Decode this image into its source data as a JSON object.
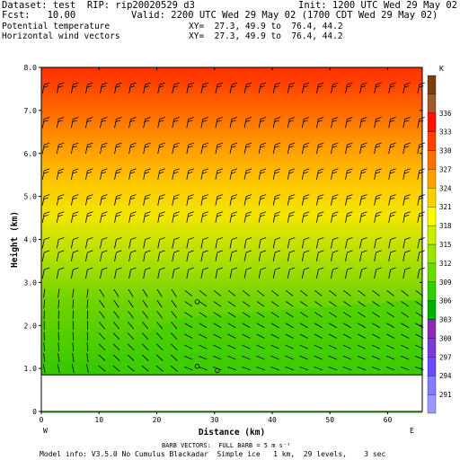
{
  "header": {
    "dataset": "Dataset: test  RIP: rip20020529 d3",
    "init": "Init: 1200 UTC Wed 29 May 02",
    "fcst": "Fcst:   10.00",
    "valid": "Valid: 2200 UTC Wed 29 May 02 (1700 CDT Wed 29 May 02)",
    "field1": "Potential temperature",
    "field1_xy": "XY=  27.3, 49.9 to  76.4, 44.2",
    "field2": "Horizontal wind vectors",
    "field2_xy": "XY=  27.3, 49.9 to  76.4, 44.2"
  },
  "footer": {
    "barb_vectors": "BARB VECTORS:  FULL BARB = 5 m s⁻¹",
    "model_info": "Model info: V3.5.0 No Cumulus Blackadar  Simple ice   1 km,  29 levels,    3 sec"
  },
  "chart_data": {
    "type": "heatmap",
    "xlabel": "Distance (km)",
    "ylabel": "Height (km)",
    "xlim": [
      0,
      66
    ],
    "ylim": [
      0,
      8
    ],
    "x_ticks": [
      "0",
      "10",
      "20",
      "30",
      "40",
      "50",
      "60"
    ],
    "y_ticks": [
      "0",
      "1.0",
      "2.0",
      "3.0",
      "4.0",
      "5.0",
      "6.0",
      "7.0",
      "8.0"
    ],
    "x_end_labels": {
      "left": "W",
      "right": "E"
    },
    "colorbar": {
      "unit": "K",
      "levels": [
        "291",
        "294",
        "297",
        "300",
        "303",
        "306",
        "309",
        "312",
        "315",
        "318",
        "321",
        "324",
        "327",
        "330",
        "333",
        "336"
      ],
      "colors": [
        "#9999ff",
        "#8080ff",
        "#6a4bff",
        "#7a3bd6",
        "#8a2bb0",
        "#00b000",
        "#33cc00",
        "#66dd00",
        "#99e600",
        "#ccee00",
        "#ffff00",
        "#ffd000",
        "#ffa000",
        "#ff7000",
        "#ff4000",
        "#ff1000",
        "#a05a2c",
        "#7a3f12"
      ]
    },
    "terrain_height_km": 0.85,
    "theta_field": [
      {
        "z": 0.85,
        "theta": 309
      },
      {
        "z": 2.6,
        "theta": 312
      },
      {
        "z": 3.7,
        "theta": 315
      },
      {
        "z": 4.6,
        "theta": 318
      },
      {
        "z": 5.4,
        "theta": 321
      },
      {
        "z": 6.2,
        "theta": 324
      },
      {
        "z": 7.0,
        "theta": 327
      },
      {
        "z": 7.8,
        "theta": 330
      }
    ],
    "markers": [
      {
        "x": 27,
        "z": 2.55,
        "label": "o"
      },
      {
        "x": 27,
        "z": 1.05,
        "label": "o"
      },
      {
        "x": 30.5,
        "z": 0.95,
        "label": "o"
      }
    ]
  }
}
